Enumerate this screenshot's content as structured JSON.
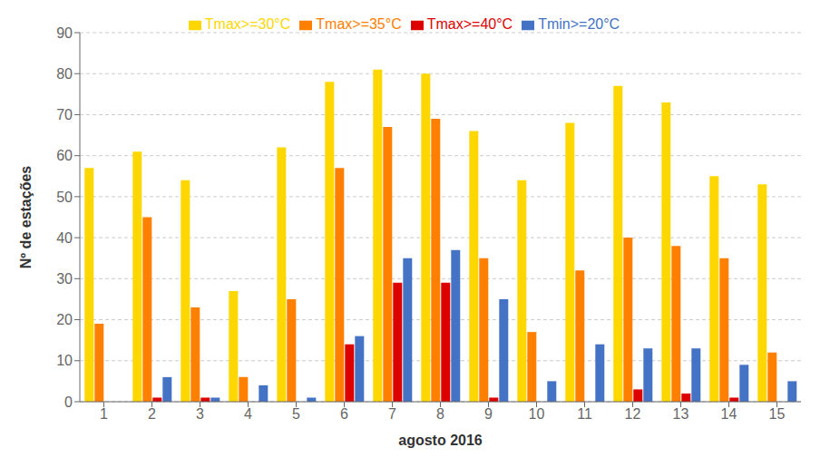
{
  "chart_data": {
    "type": "bar",
    "categories": [
      1,
      2,
      3,
      4,
      5,
      6,
      7,
      8,
      9,
      10,
      11,
      12,
      13,
      14,
      15
    ],
    "series": [
      {
        "name": "Tmax>=30°C",
        "color": "#FFD700",
        "values": [
          57,
          61,
          54,
          27,
          62,
          78,
          81,
          80,
          66,
          54,
          68,
          77,
          73,
          55,
          53
        ]
      },
      {
        "name": "Tmax>=35°C",
        "color": "#FF8000",
        "values": [
          19,
          45,
          23,
          6,
          25,
          57,
          67,
          69,
          35,
          17,
          32,
          40,
          38,
          35,
          12
        ]
      },
      {
        "name": "Tmax>=40°C",
        "color": "#DD0000",
        "values": [
          0,
          1,
          1,
          0,
          0,
          14,
          29,
          29,
          1,
          0,
          0,
          3,
          2,
          1,
          0
        ]
      },
      {
        "name": "Tmin>=20°C",
        "color": "#4472C4",
        "values": [
          0,
          6,
          1,
          4,
          1,
          16,
          35,
          37,
          25,
          5,
          14,
          13,
          13,
          9,
          5
        ]
      }
    ],
    "xlabel": "agosto 2016",
    "ylabel": "Nº de estações",
    "ylim": [
      0,
      90
    ],
    "yticks": [
      0,
      10,
      20,
      30,
      40,
      50,
      60,
      70,
      80,
      90
    ],
    "grid": true,
    "legend": "top"
  }
}
